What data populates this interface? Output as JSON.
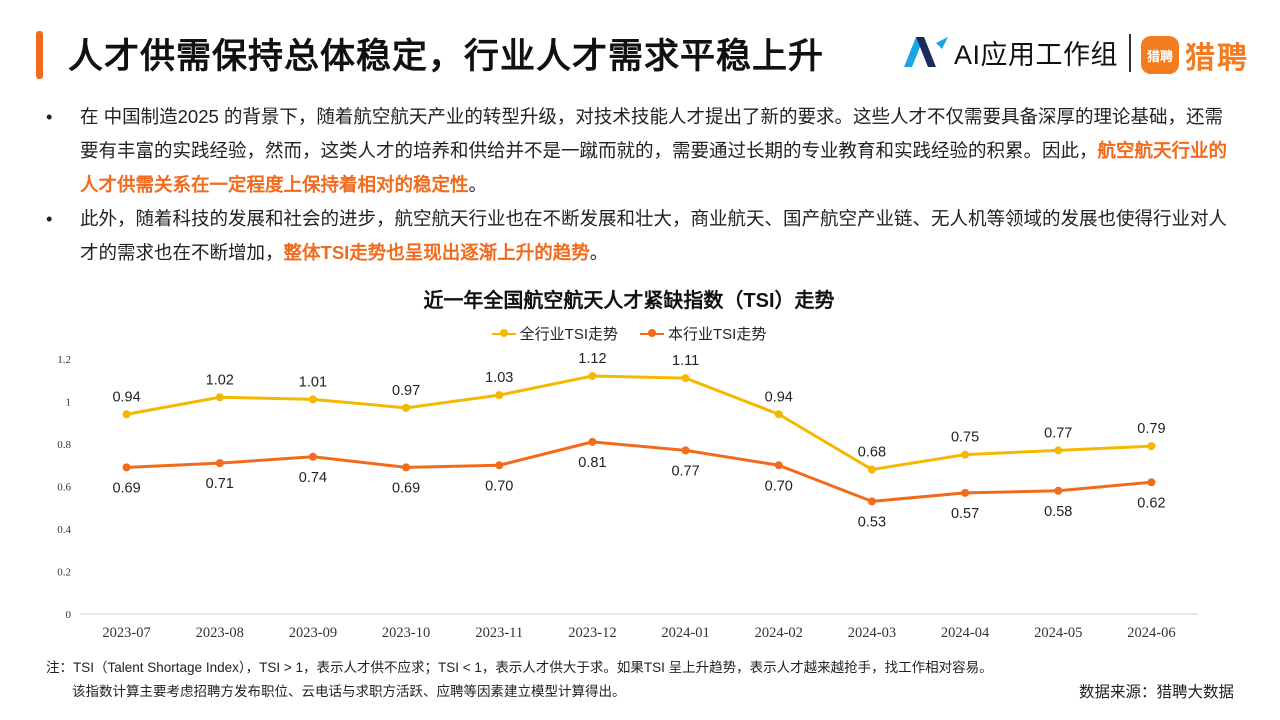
{
  "page": {
    "title": "人才供需保持总体稳定，行业人才需求平稳上升",
    "brand_ai": "AI应用工作组",
    "brand_liepin_badge": "猎聘",
    "brand_liepin": "猎聘"
  },
  "bullets": [
    {
      "dot": "•",
      "text_a": "在 中国制造2025 的背景下，随着航空航天产业的转型升级，对技术技能人才提出了新的要求。这些人才不仅需要具备深厚的理论基础，还需要有丰富的实践经验，然而，这类人才的培养和供给并不是一蹴而就的，需要通过长期的专业教育和实践经验的积累。因此，",
      "highlight": "航空航天行业的人才供需关系在一定程度上保持着相对的稳定性",
      "text_b": "。"
    },
    {
      "dot": "•",
      "text_a": "此外，随着科技的发展和社会的进步，航空航天行业也在不断发展和壮大，商业航天、国产航空产业链、无人机等领域的发展也使得行业对人才的需求也在不断增加，",
      "highlight": "整体TSI走势也呈现出逐渐上升的趋势",
      "text_b": "。"
    }
  ],
  "chart_data": {
    "type": "line",
    "title": "近一年全国航空航天人才紧缺指数（TSI）走势",
    "categories": [
      "2023-07",
      "2023-08",
      "2023-09",
      "2023-10",
      "2023-11",
      "2023-12",
      "2024-01",
      "2024-02",
      "2024-03",
      "2024-04",
      "2024-05",
      "2024-06"
    ],
    "series": [
      {
        "name": "全行业TSI走势",
        "color": "#f5b800",
        "values": [
          0.94,
          1.02,
          1.01,
          0.97,
          1.03,
          1.12,
          1.11,
          0.94,
          0.68,
          0.75,
          0.77,
          0.79
        ],
        "labels": [
          "0.94",
          "1.02",
          "1.01",
          "0.97",
          "1.03",
          "1.12",
          "1.11",
          "0.94",
          "0.68",
          "0.75",
          "0.77",
          "0.79"
        ]
      },
      {
        "name": "本行业TSI走势",
        "color": "#f26b1d",
        "values": [
          0.69,
          0.71,
          0.74,
          0.69,
          0.7,
          0.81,
          0.77,
          0.7,
          0.53,
          0.57,
          0.58,
          0.62
        ],
        "labels": [
          "0.69",
          "0.71",
          "0.74",
          "0.69",
          "0.70",
          "0.81",
          "0.77",
          "0.70",
          "0.53",
          "0.57",
          "0.58",
          "0.62"
        ]
      }
    ],
    "yticks": [
      {
        "v": 0,
        "label": "0"
      },
      {
        "v": 0.2,
        "label": "0.2"
      },
      {
        "v": 0.4,
        "label": "0.4"
      },
      {
        "v": 0.6,
        "label": "0.6"
      },
      {
        "v": 0.8,
        "label": "0.8"
      },
      {
        "v": 1,
        "label": "1"
      },
      {
        "v": 1.2,
        "label": "1.2"
      }
    ],
    "ylim": [
      0,
      1.2
    ],
    "grid": false,
    "legend": "top-center"
  },
  "footer": {
    "note_line1": "注：TSI（Talent Shortage Index），TSI > 1，表示人才供不应求；TSI < 1，表示人才供大于求。如果TSI 呈上升趋势，表示人才越来越抢手，找工作相对容易。",
    "note_line2": "该指数计算主要考虑招聘方发布职位、云电话与求职方活跃、应聘等因素建立模型计算得出。",
    "source": "数据来源：猎聘大数据"
  }
}
